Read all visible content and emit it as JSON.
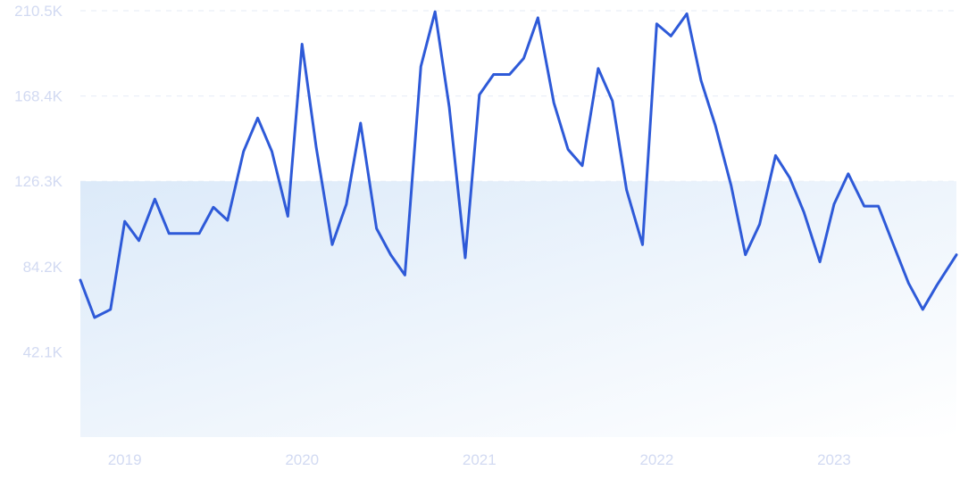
{
  "chart_data": {
    "type": "line",
    "title": "",
    "xlabel": "",
    "ylabel": "",
    "x_tick_labels": [
      {
        "label": "2019",
        "x": 2019.0
      },
      {
        "label": "2020",
        "x": 2020.0
      },
      {
        "label": "2021",
        "x": 2021.0
      },
      {
        "label": "2022",
        "x": 2022.0
      },
      {
        "label": "2023",
        "x": 2023.0
      }
    ],
    "y_tick_labels": [
      {
        "label": "42.1K",
        "value": 42100
      },
      {
        "label": "84.2K",
        "value": 84200
      },
      {
        "label": "126.3K",
        "value": 126300
      },
      {
        "label": "168.4K",
        "value": 168400
      },
      {
        "label": "210.5K",
        "value": 210500
      }
    ],
    "xlim": [
      2018.75,
      2023.69
    ],
    "ylim": [
      0,
      210500
    ],
    "grid": true,
    "colors": {
      "line": "#2e5ad8",
      "area_top": "#dceaf9",
      "area_bottom": "#ffffff",
      "grid": "#e6ebf6",
      "tick_text": "#d2daf2"
    },
    "series": [
      {
        "x": [
          2018.75,
          2018.83,
          2018.92,
          2019.0,
          2019.08,
          2019.17,
          2019.25,
          2019.33,
          2019.42,
          2019.5,
          2019.58,
          2019.67,
          2019.75,
          2019.83,
          2019.92,
          2020.0,
          2020.08,
          2020.17,
          2020.25,
          2020.33,
          2020.42,
          2020.5,
          2020.58,
          2020.67,
          2020.75,
          2020.83,
          2020.92,
          2021.0,
          2021.08,
          2021.17,
          2021.25,
          2021.33,
          2021.42,
          2021.5,
          2021.58,
          2021.67,
          2021.75,
          2021.83,
          2021.92,
          2022.0,
          2022.08,
          2022.17,
          2022.25,
          2022.33,
          2022.42,
          2022.5,
          2022.58,
          2022.67,
          2022.75,
          2022.83,
          2022.92,
          2023.0,
          2023.08,
          2023.17,
          2023.25,
          2023.33,
          2023.42,
          2023.5,
          2023.58,
          2023.69
        ],
        "values": [
          77500,
          59000,
          63000,
          106500,
          97000,
          117500,
          100500,
          100500,
          100500,
          113500,
          107000,
          141000,
          157500,
          141000,
          109000,
          194000,
          143000,
          95000,
          115000,
          155000,
          103000,
          90000,
          80000,
          183000,
          210000,
          163000,
          88500,
          169000,
          179000,
          179000,
          187000,
          207000,
          165000,
          142000,
          134000,
          182000,
          166000,
          122000,
          95000,
          204000,
          198000,
          209000,
          176000,
          154000,
          124000,
          90000,
          105000,
          139000,
          128000,
          111000,
          86500,
          115000,
          130000,
          114000,
          114000,
          96000,
          76000,
          63000,
          75000,
          90000
        ]
      }
    ]
  }
}
